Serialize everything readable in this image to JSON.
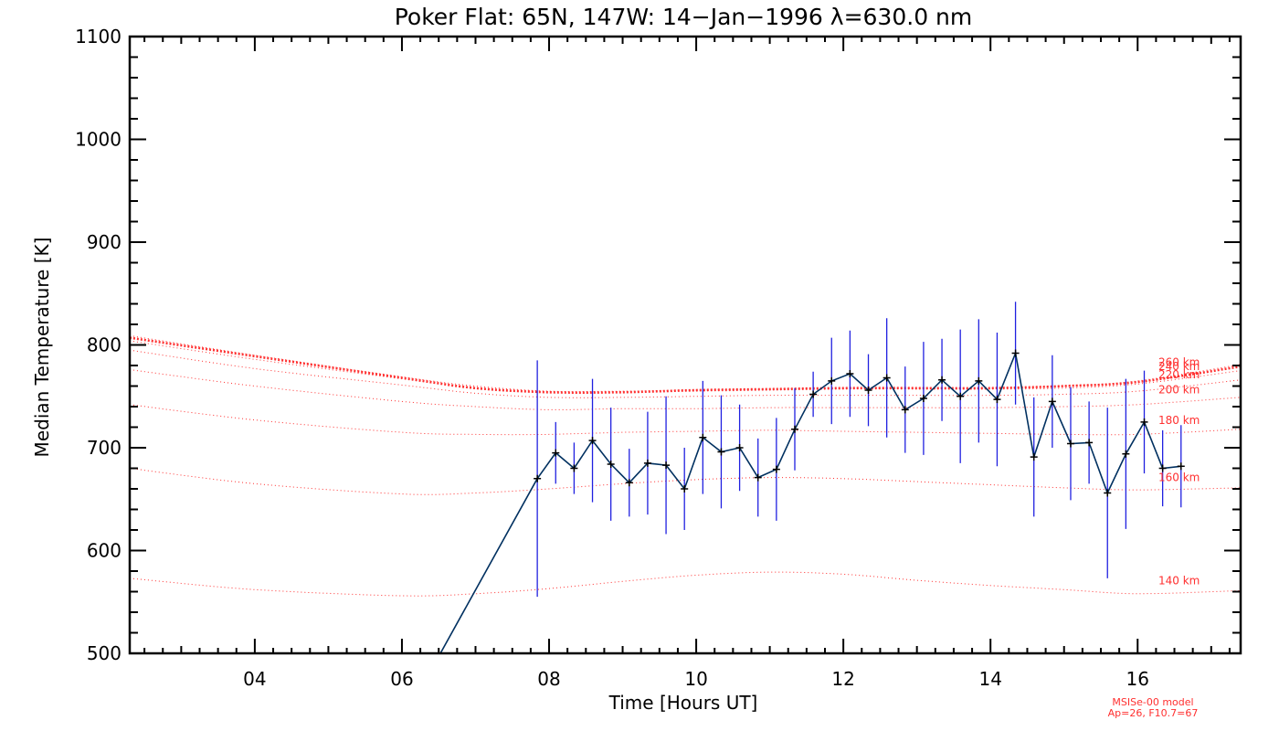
{
  "chart_data": {
    "type": "line",
    "title": "Poker Flat: 65N, 147W: 14−Jan−1996 λ=630.0 nm",
    "xlabel": "Time [Hours UT]",
    "ylabel": "Median Temperature [K]",
    "xlim": [
      2.3,
      17.4
    ],
    "ylim": [
      500,
      1100
    ],
    "xticks": [
      4,
      6,
      8,
      10,
      12,
      14,
      16
    ],
    "xtick_labels": [
      "04",
      "06",
      "08",
      "10",
      "12",
      "14",
      "16"
    ],
    "yticks": [
      500,
      600,
      700,
      800,
      900,
      1000,
      1100
    ],
    "ytick_labels": [
      "500",
      "600",
      "700",
      "800",
      "900",
      "1000",
      "1100"
    ],
    "grid": false,
    "measured": {
      "name": "Median temperature",
      "color": "#003060",
      "errorbar_color": "#2020e0",
      "x": [
        6.5,
        7.84,
        8.09,
        8.34,
        8.59,
        8.84,
        9.09,
        9.34,
        9.59,
        9.84,
        10.09,
        10.34,
        10.59,
        10.84,
        11.09,
        11.34,
        11.59,
        11.84,
        12.09,
        12.34,
        12.59,
        12.84,
        13.09,
        13.34,
        13.59,
        13.84,
        14.09,
        14.34,
        14.59,
        14.84,
        15.09,
        15.34,
        15.59,
        15.84,
        16.09,
        16.34,
        16.59
      ],
      "y": [
        497,
        670,
        695,
        680,
        707,
        684,
        666,
        685,
        683,
        660,
        710,
        696,
        700,
        671,
        679,
        718,
        752,
        765,
        772,
        756,
        768,
        737,
        748,
        766,
        750,
        765,
        747,
        792,
        691,
        745,
        704,
        705,
        656,
        694,
        725,
        680,
        682
      ],
      "err": [
        0,
        115,
        30,
        25,
        60,
        55,
        33,
        50,
        67,
        40,
        55,
        55,
        42,
        38,
        50,
        40,
        22,
        42,
        42,
        35,
        58,
        42,
        55,
        40,
        65,
        60,
        65,
        50,
        58,
        45,
        55,
        40,
        83,
        73,
        50,
        37,
        40
      ]
    },
    "model": {
      "source": "MSISe-00 model",
      "params": "Ap=26, F10.7=67",
      "color": "#ff3030",
      "x": [
        2.3,
        4.0,
        6.0,
        7.0,
        8.0,
        9.0,
        10.0,
        11.0,
        12.0,
        13.0,
        14.0,
        15.0,
        16.0,
        17.4
      ],
      "layers": [
        {
          "label": "140 km",
          "y": [
            573,
            562,
            556,
            558,
            563,
            570,
            576,
            579,
            577,
            571,
            566,
            562,
            558,
            561
          ]
        },
        {
          "label": "160 km",
          "y": [
            680,
            665,
            655,
            656,
            660,
            665,
            669,
            671,
            670,
            667,
            664,
            661,
            659,
            661
          ]
        },
        {
          "label": "180 km",
          "y": [
            742,
            727,
            715,
            713,
            713,
            715,
            716,
            717,
            716,
            715,
            714,
            713,
            713,
            718
          ]
        },
        {
          "label": "200 km",
          "y": [
            776,
            760,
            745,
            740,
            737,
            738,
            738,
            739,
            739,
            739,
            739,
            740,
            742,
            749
          ]
        },
        {
          "label": "220 km",
          "y": [
            795,
            777,
            761,
            753,
            749,
            749,
            750,
            751,
            751,
            751,
            751,
            752,
            755,
            766
          ]
        },
        {
          "label": "240 km",
          "y": [
            804,
            786,
            767,
            758,
            754,
            754,
            755,
            756,
            757,
            757,
            757,
            758,
            762,
            775
          ]
        },
        {
          "label": "260 km",
          "y": [
            809,
            790,
            769,
            760,
            755,
            755,
            756,
            757,
            758,
            758,
            758,
            760,
            765,
            781
          ]
        }
      ],
      "thick": {
        "y": [
          807,
          789,
          768,
          758,
          754,
          754,
          756,
          757,
          758,
          758,
          758,
          760,
          764,
          779
        ]
      }
    }
  }
}
